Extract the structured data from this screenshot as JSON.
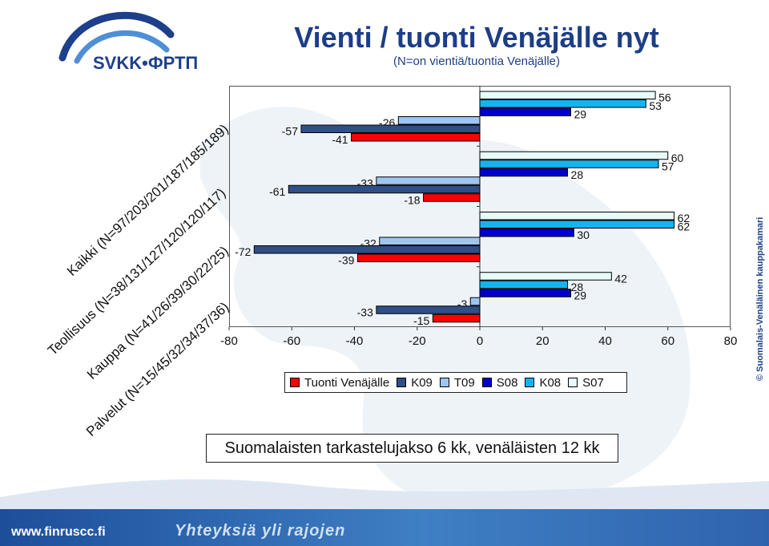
{
  "header": {
    "logo_text": "SVKK•ФРТП",
    "title": "Vienti / tuonti Venäjälle nyt",
    "subtitle": "(N=on vientiä/tuontia Venäjälle)"
  },
  "category_labels": [
    "Kaikki (N=97/203/201/187/185/189)",
    "Teollisuus (N=38/131/127/120/120/117)",
    "Kauppa (N=41/26/39/30/22/25)",
    "Palvelut (N=15/45/32/34/37/36)"
  ],
  "legend_items": [
    {
      "label": "Tuonti Venäjälle",
      "color": "#ff0000"
    },
    {
      "label": "K09",
      "color": "#2f4f87"
    },
    {
      "label": "T09",
      "color": "#9ec6f2"
    },
    {
      "label": "S08",
      "color": "#0000cc"
    },
    {
      "label": "K08",
      "color": "#14b5ee"
    },
    {
      "label": "S07",
      "color": "#e8fbfb"
    }
  ],
  "note": "Suomalaisten tarkastelujakso 6 kk, venäläisten 12 kk",
  "copyright": "© Suomalais-Venäläinen kauppakamari",
  "footer": {
    "url": "www.finruscc.fi",
    "slogan": "Yhteyksiä yli rajojen"
  },
  "chart_data": {
    "type": "bar",
    "orientation": "horizontal",
    "categories": [
      "Kaikki (N=97/203/201/187/185/189)",
      "Teollisuus (N=38/131/127/120/120/117)",
      "Kauppa (N=41/26/39/30/22/25)",
      "Palvelut (N=15/45/32/34/37/36)"
    ],
    "xlim": [
      -80,
      80
    ],
    "xticks": [
      -80,
      -60,
      -40,
      -20,
      0,
      20,
      40,
      60,
      80
    ],
    "grid": false,
    "legend_position": "bottom",
    "series": [
      {
        "name": "Tuonti Venäjälle",
        "color": "#ff0000",
        "values": [
          -41,
          -18,
          -39,
          -15
        ]
      },
      {
        "name": "K09",
        "color": "#2f4f87",
        "values": [
          -57,
          -61,
          -72,
          -33
        ]
      },
      {
        "name": "T09",
        "color": "#9ec6f2",
        "values": [
          -26,
          -33,
          -32,
          -3
        ]
      },
      {
        "name": "S08",
        "color": "#0000cc",
        "values": [
          29,
          28,
          30,
          29
        ]
      },
      {
        "name": "K08",
        "color": "#14b5ee",
        "values": [
          53,
          57,
          62,
          28
        ]
      },
      {
        "name": "S07",
        "color": "#e8fbfb",
        "values": [
          56,
          60,
          62,
          42
        ]
      }
    ]
  }
}
